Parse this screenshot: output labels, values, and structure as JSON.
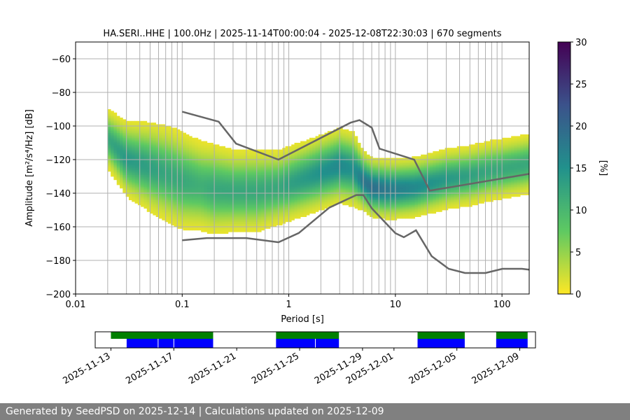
{
  "chart_data": [
    {
      "type": "heatmap",
      "title": "HA.SERI..HHE | 100.0Hz | 2025-11-14T00:00:04 - 2025-12-08T22:30:03 | 670 segments",
      "xlabel": "Period [s]",
      "ylabel": "Amplitude [m²/s⁴/Hz] [dB]",
      "x_scale": "log",
      "xlim": [
        0.01,
        180
      ],
      "ylim": [
        -200,
        -50
      ],
      "x_ticks": [
        0.01,
        0.1,
        1,
        10,
        100
      ],
      "x_tick_labels": [
        "0.01",
        "0.1",
        "1",
        "10",
        "100"
      ],
      "y_ticks": [
        -200,
        -180,
        -160,
        -140,
        -120,
        -100,
        -80,
        -60
      ],
      "y_tick_labels": [
        "−200",
        "−180",
        "−160",
        "−140",
        "−120",
        "−100",
        "−80",
        "−60"
      ],
      "grid": true,
      "colorbar": {
        "label": "[%]",
        "min": 0,
        "max": 30,
        "ticks": [
          0,
          5,
          10,
          15,
          20,
          25,
          30
        ],
        "tick_labels": [
          "0",
          "5",
          "10",
          "15",
          "20",
          "25",
          "30"
        ],
        "colormap": [
          "#440154",
          "#3b528b",
          "#21918c",
          "#5ec962",
          "#fde725"
        ]
      },
      "noise_models": [
        {
          "name": "New High Noise Model",
          "color": "#666666",
          "period": [
            0.1,
            0.22,
            0.32,
            0.8,
            3.8,
            4.6,
            6,
            7.1,
            15,
            21,
            180
          ],
          "db": [
            -91.5,
            -97.4,
            -110.5,
            -120,
            -98,
            -96.5,
            -101,
            -113.5,
            -120,
            -138.5,
            -128.5
          ]
        },
        {
          "name": "New Low Noise Model",
          "color": "#666666",
          "period": [
            0.1,
            0.17,
            0.4,
            0.8,
            1.24,
            2.4,
            4.3,
            5,
            6,
            10,
            12,
            15.6,
            21.9,
            31.6,
            45,
            70,
            101,
            154,
            180
          ],
          "db": [
            -168,
            -166.7,
            -166.7,
            -169.2,
            -163.7,
            -148.6,
            -141.1,
            -141.1,
            -149,
            -163.8,
            -166.2,
            -162.1,
            -177.5,
            -185,
            -187.5,
            -187.5,
            -185,
            -185,
            -185.5
          ]
        }
      ],
      "psd_density": {
        "period": [
          0.02,
          0.03,
          0.05,
          0.08,
          0.1,
          0.15,
          0.2,
          0.3,
          0.5,
          0.8,
          1,
          1.5,
          2,
          3,
          4,
          5,
          6,
          8,
          10,
          15,
          20,
          30,
          50,
          80,
          100,
          150,
          180
        ],
        "mode_db": [
          -108,
          -120,
          -125,
          -130,
          -133,
          -136,
          -138,
          -139,
          -139,
          -137,
          -135,
          -131,
          -128,
          -124,
          -126,
          -133,
          -137,
          -138,
          -138,
          -137,
          -135,
          -132,
          -130,
          -127,
          -126,
          -124,
          -123
        ],
        "spread_db": [
          8,
          10,
          12,
          13,
          13,
          12,
          12,
          11,
          11,
          10,
          10,
          10,
          10,
          10,
          10,
          8,
          8,
          8,
          8,
          8,
          8,
          8,
          8,
          8,
          8,
          8,
          8
        ],
        "peak_percent": [
          12,
          14,
          13,
          12,
          12,
          11,
          12,
          12,
          12,
          12,
          13,
          14,
          15,
          16,
          15,
          18,
          19,
          18,
          17,
          16,
          15,
          14,
          13,
          12,
          12,
          12,
          12
        ]
      }
    },
    {
      "type": "timeline",
      "date_ticks": [
        "2025-11-13",
        "2025-11-17",
        "2025-11-21",
        "2025-11-25",
        "2025-11-29",
        "2025-12-01",
        "2025-12-05",
        "2025-12-09"
      ],
      "date_range": [
        "2025-11-12",
        "2025-12-10"
      ],
      "legend": {
        "green": "#008000",
        "blue": "#0000ff"
      },
      "green_spans": [
        [
          "2025-11-13",
          "2025-11-19.5"
        ],
        [
          "2025-11-23.5",
          "2025-11-27.5"
        ],
        [
          "2025-12-02.5",
          "2025-12-05.5"
        ],
        [
          "2025-12-07.5",
          "2025-12-09.5"
        ]
      ],
      "blue_spans": [
        [
          "2025-11-14",
          "2025-11-19.5"
        ],
        [
          "2025-11-23.5",
          "2025-11-27.5"
        ],
        [
          "2025-12-02.5",
          "2025-12-05.5"
        ],
        [
          "2025-12-07.5",
          "2025-12-09.5"
        ]
      ],
      "gaps": [
        "2025-11-16",
        "2025-11-17",
        "2025-11-26"
      ]
    }
  ],
  "footer": {
    "text": "Generated by SeedPSD on 2025-12-14 | Calculations updated on 2025-12-09"
  }
}
